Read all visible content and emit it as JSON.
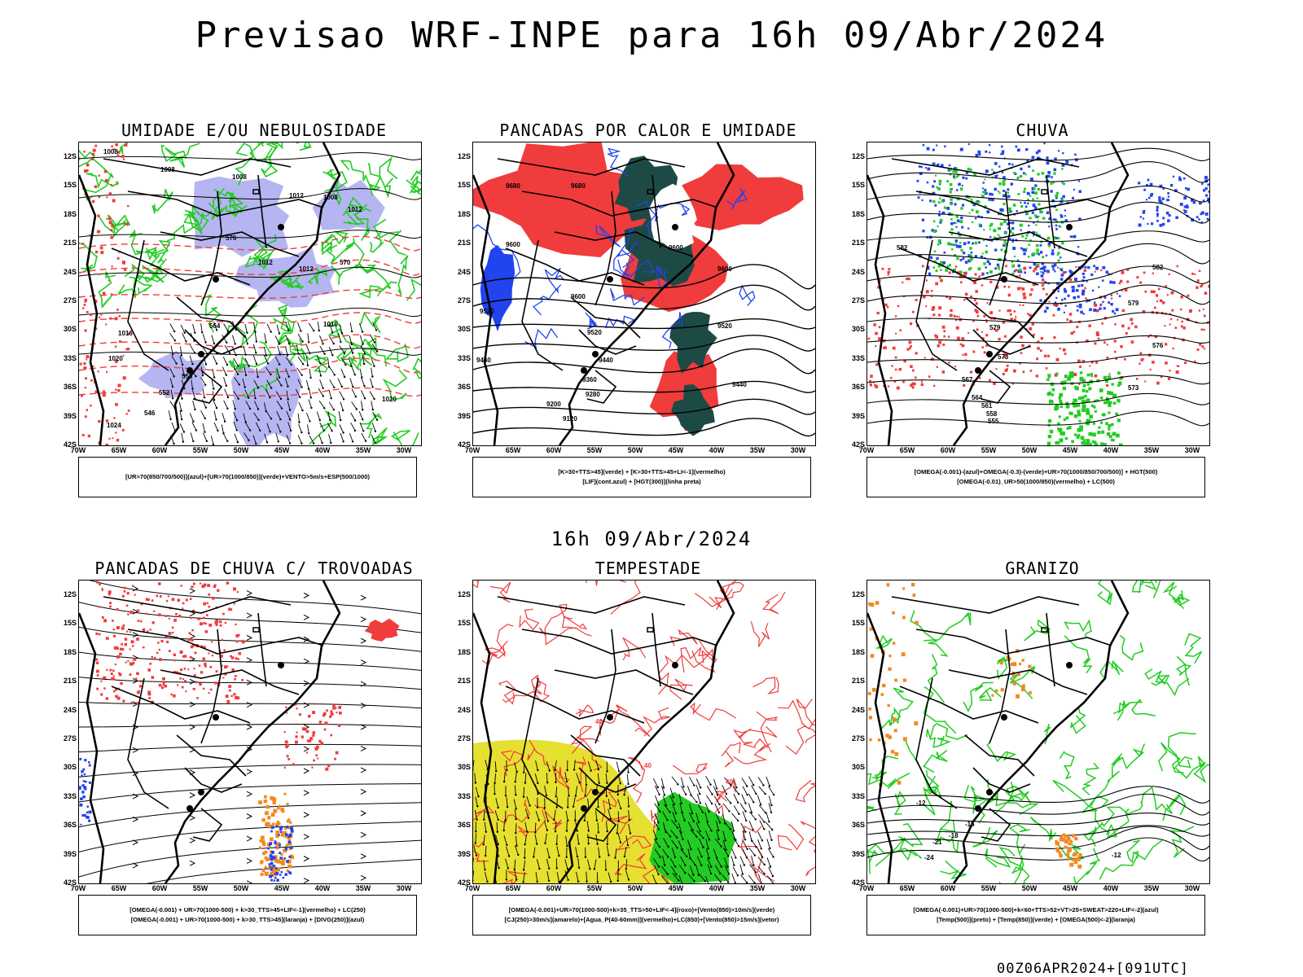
{
  "title": "Previsao WRF-INPE  para 16h 09/Abr/2024",
  "mid_date": "16h 09/Abr/2024",
  "footer": "00Z06APR2024+[091UTC]",
  "axes": {
    "lat_labels": [
      "12S",
      "15S",
      "18S",
      "21S",
      "24S",
      "27S",
      "30S",
      "33S",
      "36S",
      "39S",
      "42S"
    ],
    "lon_labels": [
      "70W",
      "65W",
      "60W",
      "55W",
      "50W",
      "45W",
      "40W",
      "35W",
      "30W"
    ]
  },
  "colors": {
    "red": "#f03c3c",
    "green": "#22cc22",
    "blue": "#2244ee",
    "lilac": "#a8a8f0",
    "darkteal": "#1e4a46",
    "yellow": "#e6e030",
    "orange": "#f08a20"
  },
  "panels": [
    {
      "title": "UMIDADE E/OU NEBULOSIDADE",
      "legend": [
        "[UR>70(850/700/500)](azul)+[UR>70(1000/850)](verde)+VENTO>5m/s+ESP(500/1000)"
      ],
      "contour_labels": [
        "1008",
        "1008",
        "1008",
        "1008",
        "1012",
        "1012",
        "1012",
        "1012",
        "1016",
        "1016",
        "1020",
        "1020",
        "1024",
        "576",
        "570",
        "564",
        "558",
        "552",
        "546"
      ]
    },
    {
      "title": "PANCADAS POR CALOR E UMIDADE",
      "legend": [
        "[K>30+TTS>45](verde)  +  [K>30+TTS>45+LI<-1](vermelho)",
        "[LIF](cont.azul)  +  [HGT(300)](linha preta)"
      ],
      "contour_labels": [
        "9680",
        "9680",
        "9600",
        "9600",
        "9600",
        "9600",
        "9520",
        "9520",
        "9520",
        "9440",
        "9440",
        "9440",
        "9360",
        "9280",
        "9200",
        "9120"
      ]
    },
    {
      "title": "CHUVA",
      "legend": [
        "[OMEGA(-0.001)-(azul)+OMEGA(-0.3)-(verde)+UR>70(1000/850/700/500)]  +  HGT(500)",
        "[OMEGA(-0.01)_UR>50(1000/850)(vermelho)  +  LC(500)"
      ],
      "contour_labels": [
        "582",
        "582",
        "579",
        "579",
        "576",
        "573",
        "573",
        "567",
        "564",
        "561",
        "558",
        "555"
      ]
    },
    {
      "title": "PANCADAS DE CHUVA C/ TROVOADAS",
      "legend": [
        "[OMEGA(-0.001)  +  UR>70(1000-500)  +  k>30_TTS>45+LIF<-1](vermelho)  +  LC(250)",
        "[OMEGA(-0.001)  +  UR>70(1000-500)  +  k>30_TTS>45](laranja)  +  [DIVG(250)](azul)"
      ],
      "contour_labels": []
    },
    {
      "title": "TEMPESTADE",
      "legend": [
        "[OMEGA(-0.001)+UR>70(1000-500)+k>35_TTS>50+LIF<-4](roxo)+[Vento(850)>10m/s](verde)",
        "[CJ(250)>30m/s](amarelo)+[Agua_P(40-60mm)](vermelho)+LC(850)+[Vento(850)>15m/s](vetor)"
      ],
      "contour_labels": [
        "40",
        "40",
        "40"
      ]
    },
    {
      "title": "GRANIZO",
      "legend": [
        "[OMEGA(-0.001)+UR>70(1000-500)+k<60+TTS>52+VT>25+SWEAT>220+LIF<-2](azul)",
        "[Temp(500)](preto)  +  [Temp(850)](verde)  +  [OMEGA(500)<-2](laranja)"
      ],
      "contour_labels": [
        "-12",
        "-15",
        "-18",
        "-21",
        "-24",
        "-12"
      ]
    }
  ]
}
